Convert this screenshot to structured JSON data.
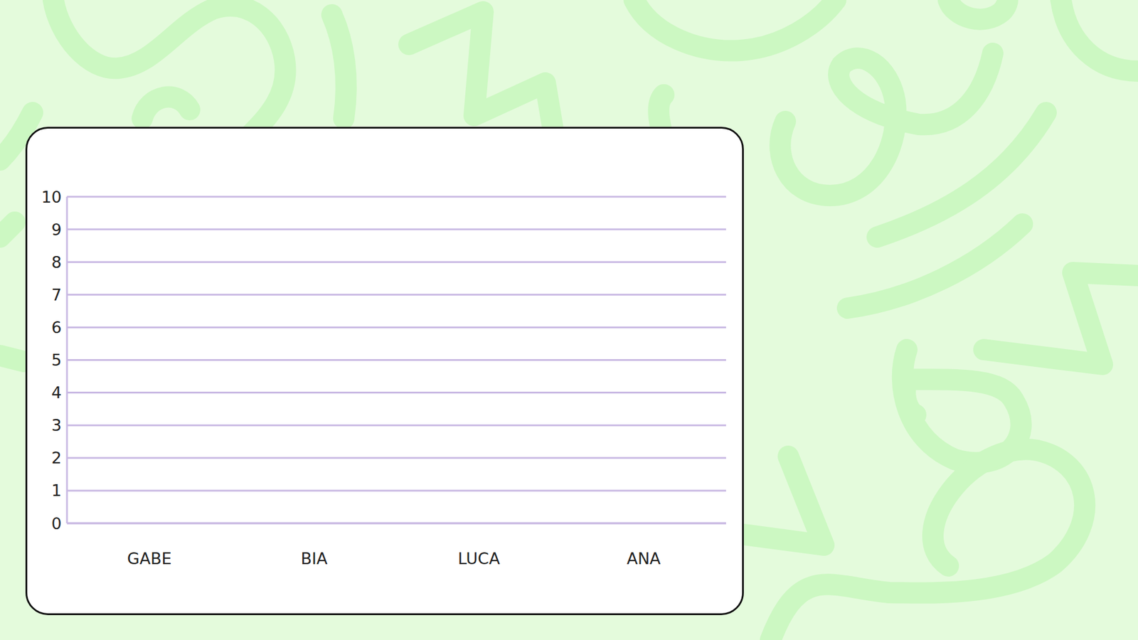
{
  "chart_data": {
    "type": "bar",
    "categories": [
      "GABE",
      "BIA",
      "LUCA",
      "ANA"
    ],
    "values": [
      null,
      null,
      null,
      null
    ],
    "ylim": [
      0,
      10
    ],
    "yticks": [
      0,
      1,
      2,
      3,
      4,
      5,
      6,
      7,
      8,
      9,
      10
    ],
    "grid": true
  }
}
